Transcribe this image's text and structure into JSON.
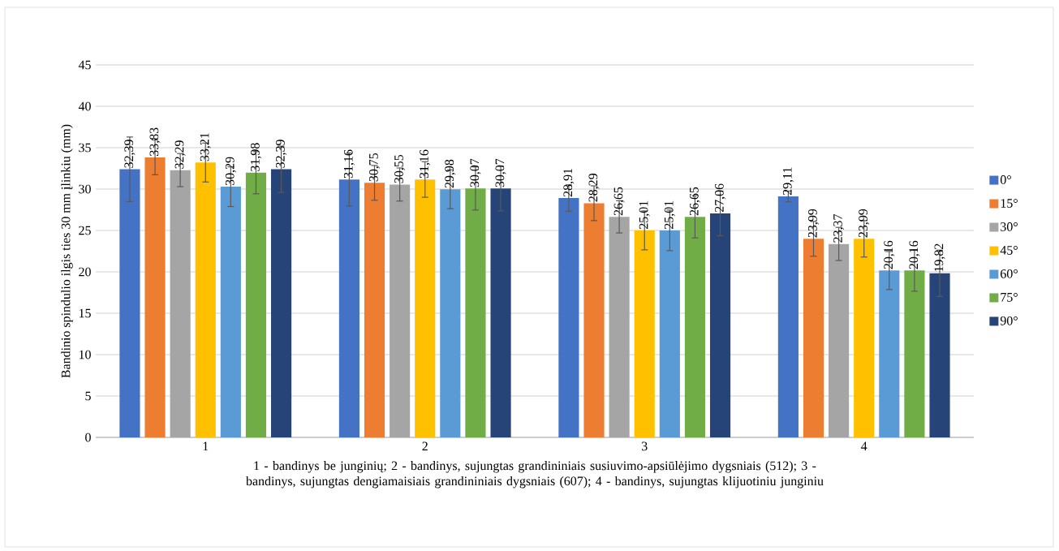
{
  "chart_data": {
    "type": "bar",
    "ylabel": "Bandinio spindulio ilgis ties 30 mm įlinkiu (mm)",
    "xlabel": "1 - bandinys be junginių; 2 - bandinys, sujungtas grandininiais susiuvimo-apsiūlėjimo dygsniais (512); 3 - bandinys, sujungtas dengiamaisiais grandininiais dygsniais (607); 4 - bandinys, sujungtas klijuotiniu junginiu",
    "categories": [
      "1",
      "2",
      "3",
      "4"
    ],
    "ylim": [
      0,
      45
    ],
    "yticks": [
      0,
      5,
      10,
      15,
      20,
      25,
      30,
      35,
      40,
      45
    ],
    "grid": "y",
    "legend": "right",
    "series": [
      {
        "name": "0°",
        "color": "#4472c4",
        "values": [
          32.39,
          31.16,
          28.91,
          29.11
        ],
        "errors": [
          3.9,
          3.2,
          1.6,
          0.65
        ],
        "value_labels": [
          "32,39",
          "31,16",
          "28,91",
          "29,11"
        ]
      },
      {
        "name": "15°",
        "color": "#ed7d31",
        "values": [
          33.83,
          30.75,
          28.29,
          23.99
        ],
        "errors": [
          2.1,
          2.1,
          2.1,
          2.1
        ],
        "value_labels": [
          "33,83",
          "30,75",
          "28,29",
          "23,99"
        ]
      },
      {
        "name": "30°",
        "color": "#a5a5a5",
        "values": [
          32.29,
          30.55,
          26.65,
          23.37
        ],
        "errors": [
          2.0,
          2.0,
          1.95,
          2.0
        ],
        "value_labels": [
          "32,29",
          "30,55",
          "26,65",
          "23,37"
        ]
      },
      {
        "name": "45°",
        "color": "#ffc000",
        "values": [
          33.21,
          31.16,
          25.01,
          23.99
        ],
        "errors": [
          2.35,
          2.15,
          2.35,
          2.2
        ],
        "value_labels": [
          "33,21",
          "31,16",
          "25,01",
          "23,99"
        ]
      },
      {
        "name": "60°",
        "color": "#5b9bd5",
        "values": [
          30.29,
          29.98,
          25.01,
          20.16
        ],
        "errors": [
          2.4,
          2.35,
          2.45,
          2.3
        ],
        "value_labels": [
          "30,29",
          "29,98",
          "25,01",
          "20,16"
        ]
      },
      {
        "name": "75°",
        "color": "#70ad47",
        "values": [
          31.98,
          30.07,
          26.65,
          20.16
        ],
        "errors": [
          2.55,
          2.6,
          2.55,
          2.5
        ],
        "value_labels": [
          "31,98",
          "30,07",
          "26,65",
          "20,16"
        ]
      },
      {
        "name": "90°",
        "color": "#264478",
        "values": [
          32.39,
          30.07,
          27.06,
          19.82
        ],
        "errors": [
          2.8,
          2.7,
          2.7,
          2.8
        ],
        "value_labels": [
          "32,39",
          "30,07",
          "27,06",
          "19,82"
        ]
      }
    ]
  }
}
